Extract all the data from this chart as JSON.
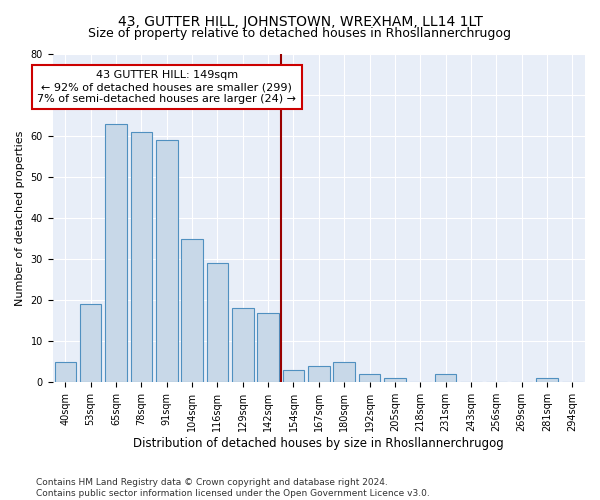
{
  "title": "43, GUTTER HILL, JOHNSTOWN, WREXHAM, LL14 1LT",
  "subtitle": "Size of property relative to detached houses in Rhosllannerchrugog",
  "xlabel": "Distribution of detached houses by size in Rhosllannerchrugog",
  "ylabel": "Number of detached properties",
  "categories": [
    "40sqm",
    "53sqm",
    "65sqm",
    "78sqm",
    "91sqm",
    "104sqm",
    "116sqm",
    "129sqm",
    "142sqm",
    "154sqm",
    "167sqm",
    "180sqm",
    "192sqm",
    "205sqm",
    "218sqm",
    "231sqm",
    "243sqm",
    "256sqm",
    "269sqm",
    "281sqm",
    "294sqm"
  ],
  "values": [
    5,
    19,
    63,
    61,
    59,
    35,
    29,
    18,
    17,
    3,
    4,
    5,
    2,
    1,
    0,
    2,
    0,
    0,
    0,
    1,
    0
  ],
  "bar_color": "#c8d8e8",
  "bar_edge_color": "#5090c0",
  "background_color": "#e8eef8",
  "vline_color": "#990000",
  "annotation_text": "43 GUTTER HILL: 149sqm\n← 92% of detached houses are smaller (299)\n7% of semi-detached houses are larger (24) →",
  "annotation_box_color": "white",
  "annotation_box_edge_color": "#cc0000",
  "ylim": [
    0,
    80
  ],
  "yticks": [
    0,
    10,
    20,
    30,
    40,
    50,
    60,
    70,
    80
  ],
  "footer": "Contains HM Land Registry data © Crown copyright and database right 2024.\nContains public sector information licensed under the Open Government Licence v3.0.",
  "title_fontsize": 10,
  "subtitle_fontsize": 9,
  "xlabel_fontsize": 8.5,
  "ylabel_fontsize": 8,
  "tick_fontsize": 7,
  "annotation_fontsize": 8,
  "footer_fontsize": 6.5
}
